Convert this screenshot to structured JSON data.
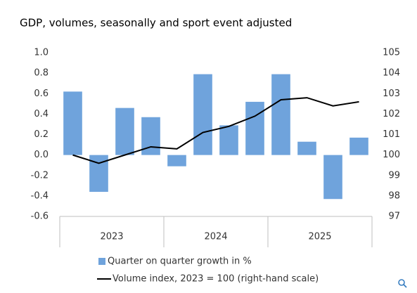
{
  "chart_data": {
    "type": "bar",
    "title": "GDP, volumes, seasonally and sport event adjusted",
    "categories": [
      null,
      null,
      null,
      null,
      null,
      null,
      null,
      null,
      null,
      null,
      null,
      null
    ],
    "x_groups": [
      "2023",
      "2024",
      "2025"
    ],
    "series": [
      {
        "name": "Quarter on quarter growth in %",
        "type": "bar",
        "color": "#6fa3dc",
        "values": [
          0.62,
          -0.36,
          0.46,
          0.37,
          -0.11,
          0.79,
          0.29,
          0.52,
          0.79,
          0.13,
          -0.43,
          0.17
        ]
      },
      {
        "name": "Volume index, 2023 = 100 (right-hand scale)",
        "type": "line",
        "color": "#000000",
        "axis": "y2",
        "values": [
          100.0,
          99.6,
          100.0,
          100.4,
          100.3,
          101.1,
          101.4,
          101.9,
          102.7,
          102.8,
          102.4,
          102.6
        ]
      }
    ],
    "ylim": [
      -0.6,
      1.0
    ],
    "yticks": [
      {
        "value": 1.0,
        "label": "1.0"
      },
      0.8,
      0.6,
      0.4,
      0.2,
      {
        "value": 0,
        "label": "0.0"
      },
      -0.2,
      -0.4,
      -0.6
    ],
    "y2lim": [
      97,
      105
    ],
    "y2ticks": [
      97,
      98,
      99,
      100,
      101,
      102,
      103,
      104,
      105
    ],
    "grid": false,
    "legend": "bottom"
  }
}
